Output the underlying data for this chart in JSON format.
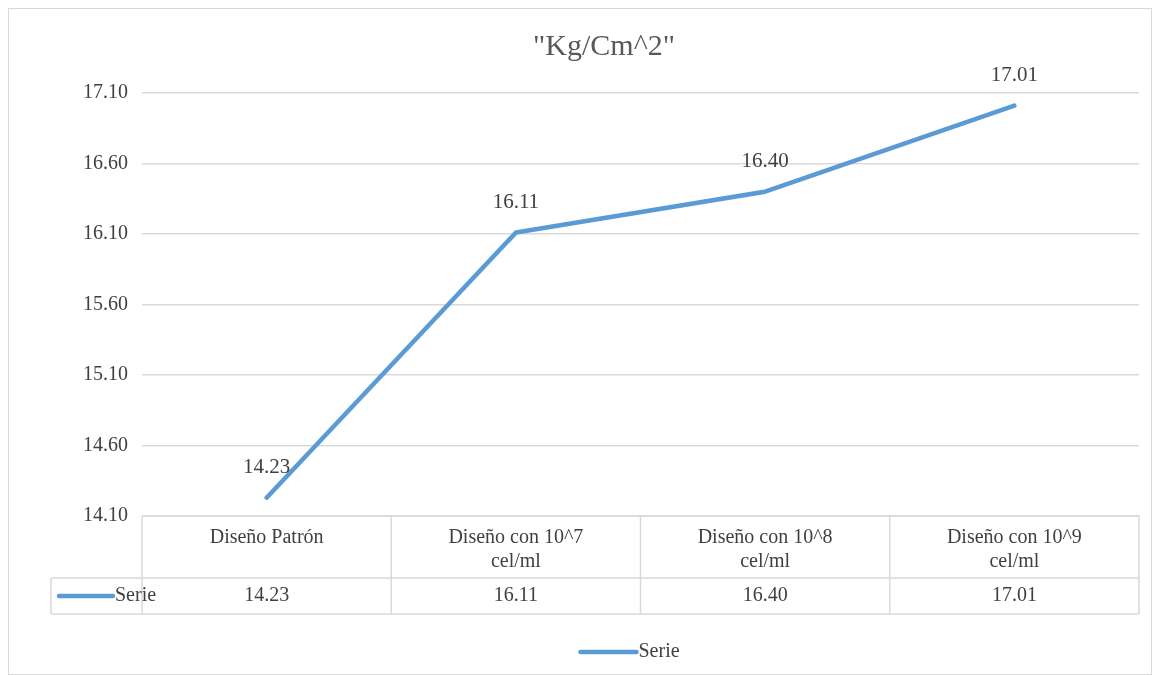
{
  "chart_data": {
    "type": "line",
    "title": "\"Kg/Cm^2\"",
    "categories": [
      "Diseño Patrón",
      "Diseño con 10^7 cel/ml",
      "Diseño con 10^8 cel/ml",
      "Diseño con 10^9 cel/ml"
    ],
    "series": [
      {
        "name": "Serie",
        "color": "#5b9bd5",
        "values": [
          14.23,
          16.11,
          16.4,
          17.01
        ],
        "value_labels": [
          "14.23",
          "16.11",
          "16.40",
          "17.01"
        ]
      }
    ],
    "ylim": [
      14.1,
      17.1
    ],
    "yticks": [
      {
        "value": 14.1,
        "label": "14.10"
      },
      {
        "value": 14.6,
        "label": "14.60"
      },
      {
        "value": 15.1,
        "label": "15.10"
      },
      {
        "value": 15.6,
        "label": "15.60"
      },
      {
        "value": 16.1,
        "label": "16.10"
      },
      {
        "value": 16.6,
        "label": "16.60"
      },
      {
        "value": 17.1,
        "label": "17.10"
      }
    ],
    "grid": "y",
    "legend": "bottom",
    "marker": "none",
    "line_style": "solid"
  }
}
